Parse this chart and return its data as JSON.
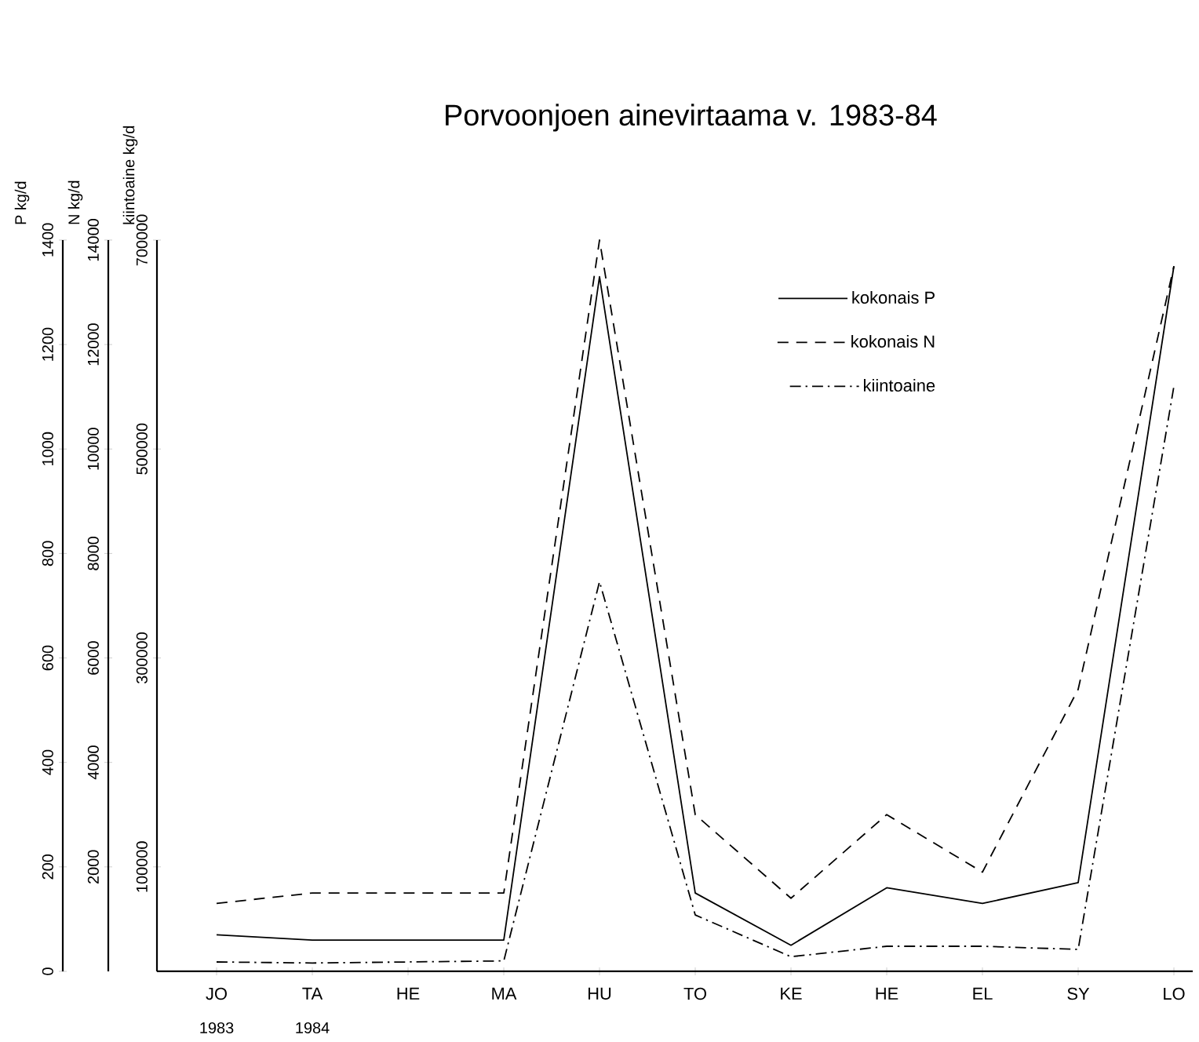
{
  "chart_data": {
    "type": "line",
    "title": "Porvoonjoen ainevirtaama v. 1983-84",
    "ylabel": "P kg/d",
    "y2label": "N kg/d",
    "y3label": "kiintoaine kg/d",
    "categories": [
      "JO",
      "TA",
      "HE",
      "MA",
      "HU",
      "TO",
      "KE",
      "HE",
      "EL",
      "SY",
      "LO"
    ],
    "series": [
      {
        "name": "kokonais P",
        "color": "#000000",
        "line_style": "solid",
        "values": [
          70,
          60,
          60,
          60,
          1330,
          150,
          50,
          160,
          130,
          170,
          1350
        ]
      },
      {
        "name": "kokonais N",
        "color": "#000000",
        "line_style": "dashed",
        "axis": "y2",
        "values": [
          1300,
          1500,
          1500,
          1500,
          14000,
          3000,
          1400,
          3000,
          1900,
          5400,
          13500
        ]
      },
      {
        "name": "kiintoaine",
        "color": "#000000",
        "line_style": "dashdot",
        "axis": "y3",
        "values": [
          9000,
          8000,
          9000,
          10000,
          373000,
          54000,
          14000,
          24000,
          24000,
          21000,
          560000
        ]
      }
    ],
    "ylim": [
      0,
      1400
    ],
    "yticks": [
      0,
      200,
      400,
      600,
      800,
      1000,
      1200,
      1400
    ],
    "y2lim": [
      0,
      14000
    ],
    "y2ticks": [
      2000,
      4000,
      6000,
      8000,
      10000,
      12000,
      14000
    ],
    "y3lim": [
      0,
      700000
    ],
    "y3ticks": [
      100000,
      300000,
      500000,
      700000
    ],
    "annotations": [
      "1983",
      "1984"
    ],
    "legend": "top right",
    "grid": false,
    "marker": "none"
  }
}
